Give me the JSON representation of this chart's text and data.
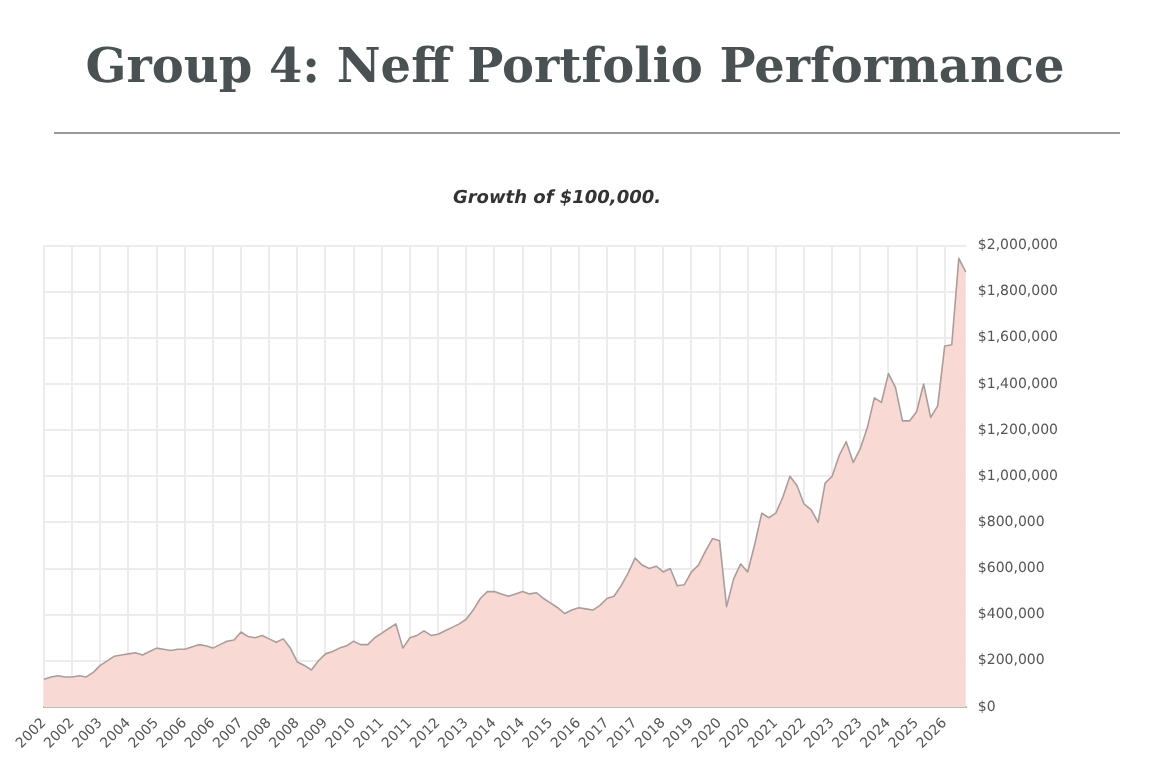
{
  "chart_data": {
    "type": "area",
    "title": "Group 4: Neff Portfolio Performance",
    "subtitle": "Growth of $100,000.",
    "categories": [
      "2002",
      null,
      null,
      null,
      "2002",
      null,
      null,
      null,
      "2003",
      null,
      null,
      null,
      "2004",
      null,
      null,
      null,
      "2005",
      null,
      null,
      null,
      "2006",
      null,
      null,
      null,
      "2006",
      null,
      null,
      null,
      "2007",
      null,
      null,
      null,
      "2008",
      null,
      null,
      null,
      "2008",
      null,
      null,
      null,
      "2009",
      null,
      null,
      null,
      "2010",
      null,
      null,
      null,
      "2011",
      null,
      null,
      null,
      "2011",
      null,
      null,
      null,
      "2012",
      null,
      null,
      null,
      "2013",
      null,
      null,
      null,
      "2014",
      null,
      null,
      null,
      "2014",
      null,
      null,
      null,
      "2015",
      null,
      null,
      null,
      "2016",
      null,
      null,
      null,
      "2017",
      null,
      null,
      null,
      "2017",
      null,
      null,
      null,
      "2018",
      null,
      null,
      null,
      "2019",
      null,
      null,
      null,
      "2020",
      null,
      null,
      null,
      "2020",
      null,
      null,
      null,
      "2021",
      null,
      null,
      null,
      "2022",
      null,
      null,
      null,
      "2023",
      null,
      null,
      null,
      "2023",
      null,
      null,
      null,
      "2024",
      null,
      null,
      null,
      "2025",
      null,
      null,
      null,
      "2026",
      null,
      null,
      null
    ],
    "series": [
      {
        "color": "#f9d9d3",
        "values": [
          120000,
          130000,
          135000,
          130000,
          130000,
          135000,
          130000,
          150000,
          180000,
          200000,
          220000,
          225000,
          230000,
          235000,
          225000,
          240000,
          255000,
          250000,
          245000,
          250000,
          250000,
          260000,
          270000,
          265000,
          255000,
          270000,
          285000,
          290000,
          325000,
          305000,
          300000,
          310000,
          295000,
          280000,
          295000,
          255000,
          195000,
          180000,
          160000,
          200000,
          230000,
          240000,
          255000,
          265000,
          285000,
          270000,
          270000,
          300000,
          320000,
          340000,
          360000,
          255000,
          300000,
          310000,
          330000,
          310000,
          315000,
          330000,
          345000,
          360000,
          380000,
          420000,
          470000,
          500000,
          500000,
          490000,
          480000,
          490000,
          500000,
          490000,
          495000,
          470000,
          450000,
          430000,
          405000,
          420000,
          430000,
          425000,
          420000,
          440000,
          470000,
          480000,
          525000,
          580000,
          645000,
          615000,
          600000,
          610000,
          585000,
          600000,
          525000,
          530000,
          585000,
          615000,
          675000,
          730000,
          720000,
          435000,
          555000,
          620000,
          585000,
          705000,
          840000,
          820000,
          840000,
          910000,
          1000000,
          960000,
          880000,
          855000,
          800000,
          970000,
          1000000,
          1090000,
          1150000,
          1060000,
          1120000,
          1210000,
          1340000,
          1320000,
          1445000,
          1385000,
          1240000,
          1240000,
          1280000,
          1400000,
          1255000,
          1305000,
          1565000,
          1570000,
          1945000,
          1885000
        ]
      }
    ],
    "ylim": [
      0,
      2000000
    ],
    "yticks": [
      {
        "value": 0,
        "label": "$0"
      },
      {
        "value": 200000,
        "label": "$200,000"
      },
      {
        "value": 400000,
        "label": "$400,000"
      },
      {
        "value": 600000,
        "label": "$600,000"
      },
      {
        "value": 800000,
        "label": "$800,000"
      },
      {
        "value": 1000000,
        "label": "$1,000,000"
      },
      {
        "value": 1200000,
        "label": "$1,200,000"
      },
      {
        "value": 1400000,
        "label": "$1,400,000"
      },
      {
        "value": 1600000,
        "label": "$1,600,000"
      },
      {
        "value": 1800000,
        "label": "$1,800,000"
      },
      {
        "value": 2000000,
        "label": "$2,000,000"
      }
    ],
    "grid": true,
    "legend": false
  }
}
